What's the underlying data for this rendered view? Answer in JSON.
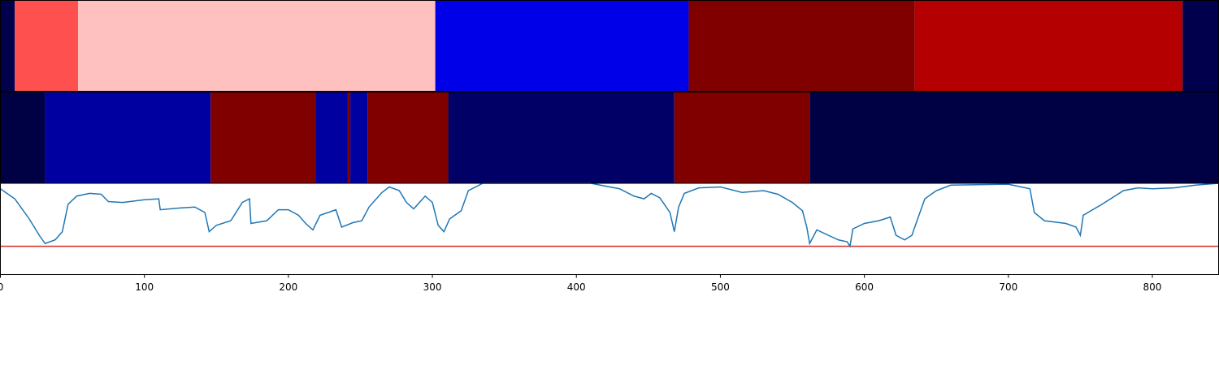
{
  "chart_data": [
    {
      "type": "segments",
      "xlim": [
        0,
        846
      ],
      "segments": [
        {
          "start": 0,
          "end": 10,
          "color": "#00004c"
        },
        {
          "start": 10,
          "end": 54,
          "color": "#ff5050"
        },
        {
          "start": 54,
          "end": 302,
          "color": "#ffc0c0"
        },
        {
          "start": 302,
          "end": 478,
          "color": "#0000e8"
        },
        {
          "start": 478,
          "end": 635,
          "color": "#800000"
        },
        {
          "start": 635,
          "end": 821,
          "color": "#b40000"
        },
        {
          "start": 821,
          "end": 846,
          "color": "#00004c"
        }
      ]
    },
    {
      "type": "segments",
      "xlim": [
        0,
        846
      ],
      "segments": [
        {
          "start": 0,
          "end": 31,
          "color": "#000045"
        },
        {
          "start": 31,
          "end": 146,
          "color": "#0000a0"
        },
        {
          "start": 146,
          "end": 219,
          "color": "#800000"
        },
        {
          "start": 219,
          "end": 241,
          "color": "#0000a0"
        },
        {
          "start": 241,
          "end": 243,
          "color": "#800000"
        },
        {
          "start": 243,
          "end": 255,
          "color": "#0000a0"
        },
        {
          "start": 255,
          "end": 311,
          "color": "#800000"
        },
        {
          "start": 311,
          "end": 468,
          "color": "#000066"
        },
        {
          "start": 468,
          "end": 562,
          "color": "#800000"
        },
        {
          "start": 562,
          "end": 846,
          "color": "#000045"
        }
      ]
    },
    {
      "type": "line",
      "xlim": [
        0,
        846
      ],
      "ylim": [
        0,
        1
      ],
      "xticks": [
        0,
        100,
        200,
        300,
        400,
        500,
        600,
        700,
        800
      ],
      "x": [
        0,
        10,
        20,
        27,
        31,
        38,
        43,
        47,
        53,
        62,
        70,
        75,
        85,
        100,
        110,
        111,
        125,
        135,
        142,
        145,
        150,
        160,
        168,
        173,
        174,
        185,
        193,
        200,
        207,
        212,
        217,
        222,
        233,
        237,
        245,
        251,
        256,
        265,
        270,
        277,
        282,
        287,
        295,
        300,
        304,
        308,
        312,
        320,
        325,
        335,
        360,
        410,
        430,
        440,
        447,
        452,
        458,
        465,
        468,
        471,
        475,
        485,
        500,
        515,
        530,
        540,
        550,
        557,
        560,
        562,
        567,
        575,
        582,
        588,
        590,
        592,
        600,
        610,
        618,
        622,
        628,
        633,
        637,
        642,
        650,
        660,
        700,
        715,
        718,
        725,
        740,
        747,
        750,
        752,
        765,
        780,
        790,
        800,
        815,
        830,
        846
      ],
      "series": [
        {
          "color": "#1f77b4",
          "values": [
            0.94,
            0.83,
            0.61,
            0.43,
            0.34,
            0.38,
            0.47,
            0.77,
            0.86,
            0.89,
            0.88,
            0.8,
            0.79,
            0.82,
            0.83,
            0.71,
            0.73,
            0.74,
            0.68,
            0.47,
            0.54,
            0.59,
            0.79,
            0.83,
            0.56,
            0.59,
            0.71,
            0.71,
            0.65,
            0.56,
            0.49,
            0.65,
            0.71,
            0.52,
            0.57,
            0.59,
            0.74,
            0.9,
            0.96,
            0.92,
            0.79,
            0.72,
            0.86,
            0.79,
            0.54,
            0.47,
            0.61,
            0.7,
            0.92,
            1.0,
            1.0,
            1.0,
            0.94,
            0.86,
            0.83,
            0.89,
            0.84,
            0.68,
            0.47,
            0.74,
            0.89,
            0.95,
            0.96,
            0.9,
            0.92,
            0.88,
            0.79,
            0.7,
            0.52,
            0.34,
            0.49,
            0.43,
            0.38,
            0.36,
            0.31,
            0.5,
            0.56,
            0.59,
            0.63,
            0.43,
            0.38,
            0.43,
            0.61,
            0.83,
            0.92,
            0.98,
            0.99,
            0.94,
            0.68,
            0.59,
            0.56,
            0.52,
            0.43,
            0.65,
            0.77,
            0.92,
            0.95,
            0.94,
            0.95,
            0.98,
            1.0
          ]
        }
      ],
      "hline": {
        "value": 0.31,
        "color": "#d62728"
      }
    }
  ]
}
